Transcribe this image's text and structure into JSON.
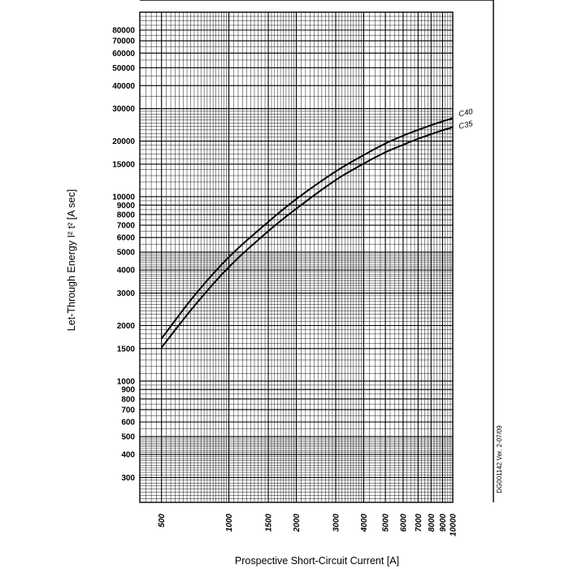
{
  "chart_data": {
    "type": "line",
    "xlabel": "Prospective Short-Circuit Current [A]",
    "ylabel": "Let-Through Energy I² t² [A sec]",
    "x_scale": "log",
    "y_scale": "log",
    "xlim": [
      400,
      10000
    ],
    "ylim": [
      220,
      100000
    ],
    "grid": true,
    "x_tick_labels": [
      {
        "value": 500,
        "label": "500"
      },
      {
        "value": 1000,
        "label": "1000"
      },
      {
        "value": 1500,
        "label": "1500"
      },
      {
        "value": 2000,
        "label": "2000"
      },
      {
        "value": 3000,
        "label": "3000"
      },
      {
        "value": 4000,
        "label": "4000"
      },
      {
        "value": 5000,
        "label": "5000"
      },
      {
        "value": 6000,
        "label": "6000"
      },
      {
        "value": 7000,
        "label": "7000"
      },
      {
        "value": 8000,
        "label": "8000"
      },
      {
        "value": 9000,
        "label": "9000"
      },
      {
        "value": 10000,
        "label": "10000"
      }
    ],
    "y_tick_labels": [
      {
        "value": 300,
        "label": "300"
      },
      {
        "value": 400,
        "label": "400"
      },
      {
        "value": 500,
        "label": "500"
      },
      {
        "value": 600,
        "label": "600"
      },
      {
        "value": 700,
        "label": "700"
      },
      {
        "value": 800,
        "label": "800"
      },
      {
        "value": 900,
        "label": "900"
      },
      {
        "value": 1000,
        "label": "1000"
      },
      {
        "value": 1500,
        "label": "1500"
      },
      {
        "value": 2000,
        "label": "2000"
      },
      {
        "value": 3000,
        "label": "3000"
      },
      {
        "value": 4000,
        "label": "4000"
      },
      {
        "value": 5000,
        "label": "5000"
      },
      {
        "value": 6000,
        "label": "6000"
      },
      {
        "value": 7000,
        "label": "7000"
      },
      {
        "value": 8000,
        "label": "8000"
      },
      {
        "value": 9000,
        "label": "9000"
      },
      {
        "value": 10000,
        "label": "10000"
      },
      {
        "value": 15000,
        "label": "15000"
      },
      {
        "value": 20000,
        "label": "20000"
      },
      {
        "value": 30000,
        "label": "30000"
      },
      {
        "value": 40000,
        "label": "40000"
      },
      {
        "value": 50000,
        "label": "50000"
      },
      {
        "value": 60000,
        "label": "60000"
      },
      {
        "value": 70000,
        "label": "70000"
      },
      {
        "value": 80000,
        "label": "80000"
      }
    ],
    "series": [
      {
        "name": "C40",
        "x": [
          500,
          700,
          1000,
          1500,
          2000,
          3000,
          4000,
          5000,
          6000,
          7000,
          8000,
          9000,
          10000
        ],
        "y": [
          1700,
          2900,
          4700,
          7300,
          9700,
          13700,
          16800,
          19400,
          21400,
          23000,
          24400,
          25600,
          26600
        ]
      },
      {
        "name": "C35",
        "x": [
          500,
          700,
          1000,
          1500,
          2000,
          3000,
          4000,
          5000,
          6000,
          7000,
          8000,
          9000,
          10000
        ],
        "y": [
          1520,
          2550,
          4150,
          6500,
          8600,
          12300,
          15100,
          17400,
          19100,
          20600,
          21800,
          22900,
          23800
        ]
      }
    ]
  },
  "doc_reference": "DG001142 Ver. 2-07/09"
}
